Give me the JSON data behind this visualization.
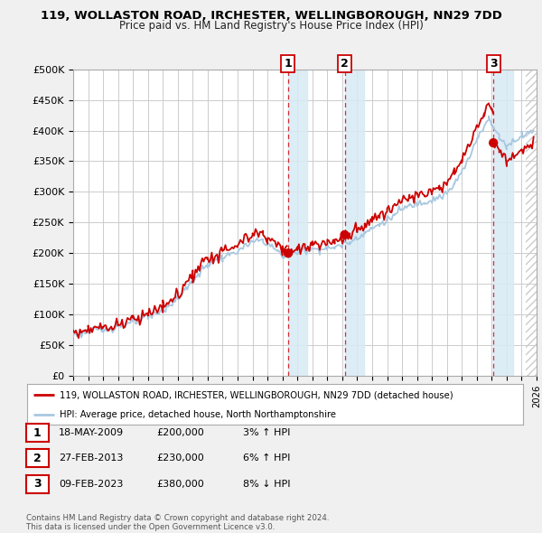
{
  "title": "119, WOLLASTON ROAD, IRCHESTER, WELLINGBOROUGH, NN29 7DD",
  "subtitle": "Price paid vs. HM Land Registry's House Price Index (HPI)",
  "ylim": [
    0,
    500000
  ],
  "yticks": [
    0,
    50000,
    100000,
    150000,
    200000,
    250000,
    300000,
    350000,
    400000,
    450000,
    500000
  ],
  "background_color": "#f0f0f0",
  "plot_bg_color": "#ffffff",
  "grid_color": "#cccccc",
  "sale_color": "#cc0000",
  "hpi_color": "#a8c8e0",
  "transactions": [
    {
      "date": 2009.38,
      "price": 200000,
      "label": "1"
    },
    {
      "date": 2013.16,
      "price": 230000,
      "label": "2"
    },
    {
      "date": 2023.11,
      "price": 380000,
      "label": "3"
    }
  ],
  "legend_line1": "119, WOLLASTON ROAD, IRCHESTER, WELLINGBOROUGH, NN29 7DD (detached house)",
  "legend_line2": "HPI: Average price, detached house, North Northamptonshire",
  "table_rows": [
    {
      "num": "1",
      "date": "18-MAY-2009",
      "price": "£200,000",
      "pct": "3% ↑ HPI"
    },
    {
      "num": "2",
      "date": "27-FEB-2013",
      "price": "£230,000",
      "pct": "6% ↑ HPI"
    },
    {
      "num": "3",
      "date": "09-FEB-2023",
      "price": "£380,000",
      "pct": "8% ↓ HPI"
    }
  ],
  "footer": "Contains HM Land Registry data © Crown copyright and database right 2024.\nThis data is licensed under the Open Government Licence v3.0.",
  "xmin": 1995,
  "xmax": 2026,
  "band_color": "#d8eaf5",
  "vline_color": "#cc0000",
  "hatch_color": "#cccccc"
}
